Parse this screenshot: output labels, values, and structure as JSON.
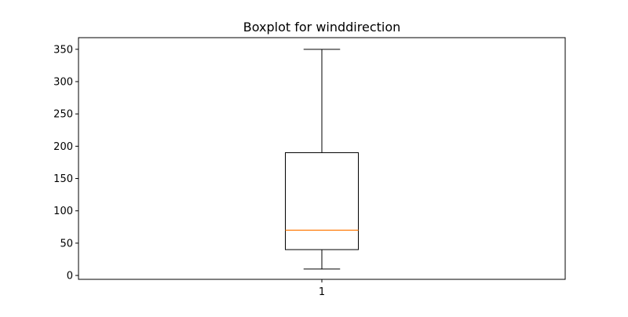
{
  "chart_data": {
    "type": "box",
    "title": "Boxplot for winddirection",
    "categories": [
      "1"
    ],
    "xlabel": "",
    "ylabel": "",
    "ylim": [
      -6,
      368
    ],
    "yticks": [
      0,
      50,
      100,
      150,
      200,
      250,
      300,
      350
    ],
    "grid": false,
    "series": [
      {
        "category": "1",
        "whisker_low": 10,
        "q1": 40,
        "median": 70,
        "q3": 190,
        "whisker_high": 350
      }
    ],
    "colors": {
      "box": "#000000",
      "median": "#ff7f0e",
      "axes": "#000000"
    }
  }
}
